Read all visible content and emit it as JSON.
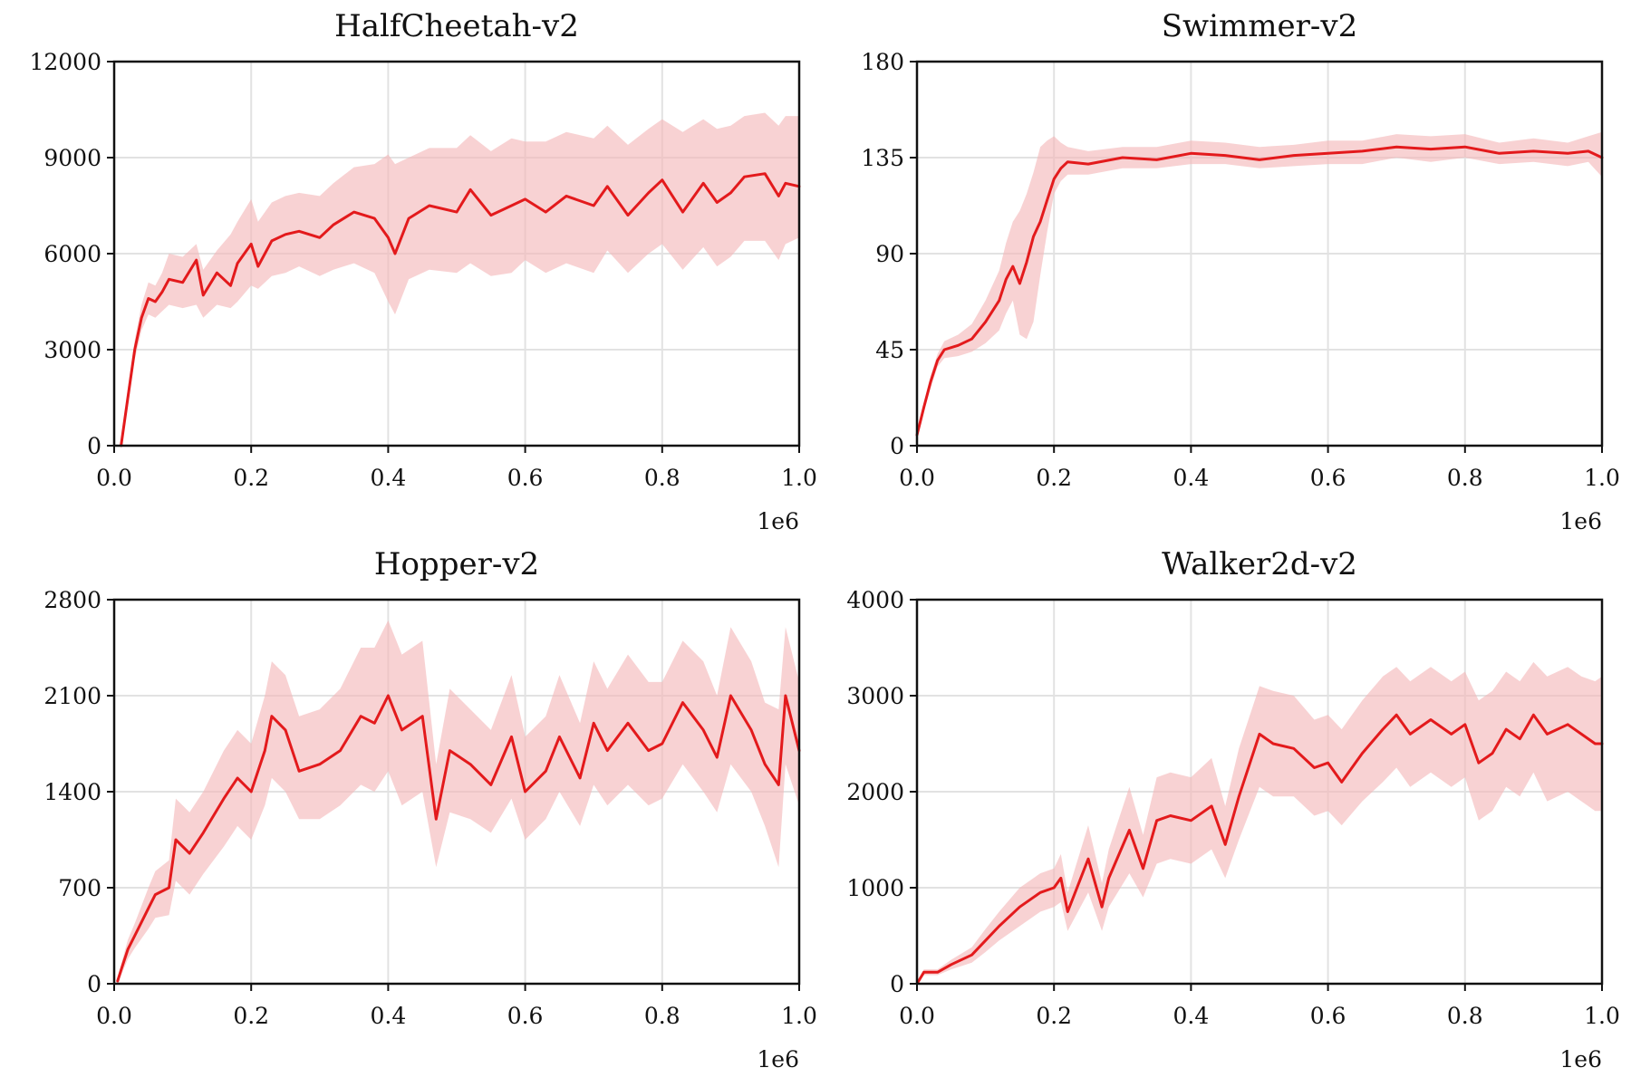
{
  "colors": {
    "line": "#e31a1c",
    "band": "#f4b6b8",
    "grid": "#e2e2e2",
    "axis": "#111111"
  },
  "chart_data": [
    {
      "type": "line",
      "title": "HalfCheetah-v2",
      "x_offset_label": "1e6",
      "xlim": [
        0,
        1.0
      ],
      "ylim": [
        0,
        12000
      ],
      "xticks": [
        0.0,
        0.2,
        0.4,
        0.6,
        0.8,
        1.0
      ],
      "xtick_labels": [
        "0.0",
        "0.2",
        "0.4",
        "0.6",
        "0.8",
        "1.0"
      ],
      "yticks": [
        0,
        3000,
        6000,
        9000,
        12000
      ],
      "ytick_labels": [
        "0",
        "3000",
        "6000",
        "9000",
        "12000"
      ],
      "grid": true,
      "series": [
        {
          "x": [
            0.01,
            0.02,
            0.03,
            0.04,
            0.05,
            0.06,
            0.07,
            0.08,
            0.1,
            0.12,
            0.13,
            0.15,
            0.17,
            0.18,
            0.2,
            0.21,
            0.23,
            0.25,
            0.27,
            0.3,
            0.32,
            0.35,
            0.38,
            0.4,
            0.41,
            0.43,
            0.46,
            0.5,
            0.52,
            0.55,
            0.58,
            0.6,
            0.63,
            0.66,
            0.7,
            0.72,
            0.75,
            0.78,
            0.8,
            0.83,
            0.86,
            0.88,
            0.9,
            0.92,
            0.95,
            0.97,
            0.98,
            1.0
          ],
          "y": [
            0,
            1500,
            3000,
            4000,
            4600,
            4500,
            4800,
            5200,
            5100,
            5800,
            4700,
            5400,
            5000,
            5700,
            6300,
            5600,
            6400,
            6600,
            6700,
            6500,
            6900,
            7300,
            7100,
            6500,
            6000,
            7100,
            7500,
            7300,
            8000,
            7200,
            7500,
            7700,
            7300,
            7800,
            7500,
            8100,
            7200,
            7900,
            8300,
            7300,
            8200,
            7600,
            7900,
            8400,
            8500,
            7800,
            8200,
            8100
          ],
          "lower": [
            0,
            1200,
            2700,
            3600,
            4100,
            4000,
            4200,
            4400,
            4300,
            4400,
            4000,
            4400,
            4300,
            4500,
            5000,
            4900,
            5300,
            5400,
            5600,
            5300,
            5500,
            5700,
            5400,
            4500,
            4100,
            5200,
            5500,
            5400,
            5700,
            5300,
            5400,
            5800,
            5400,
            5700,
            5400,
            6100,
            5400,
            6000,
            6300,
            5500,
            6200,
            5600,
            5900,
            6400,
            6400,
            5800,
            6300,
            6500
          ],
          "upper": [
            0,
            1800,
            3300,
            4400,
            5100,
            5000,
            5400,
            6000,
            5900,
            6300,
            5500,
            6100,
            6600,
            7000,
            7700,
            7000,
            7600,
            7800,
            7900,
            7800,
            8200,
            8700,
            8800,
            9100,
            8800,
            9000,
            9300,
            9300,
            9700,
            9200,
            9600,
            9500,
            9500,
            9800,
            9600,
            10000,
            9400,
            9900,
            10200,
            9800,
            10200,
            9900,
            10000,
            10300,
            10400,
            10000,
            10300,
            10300
          ]
        }
      ]
    },
    {
      "type": "line",
      "title": "Swimmer-v2",
      "x_offset_label": "1e6",
      "xlim": [
        0,
        1.0
      ],
      "ylim": [
        0,
        180
      ],
      "xticks": [
        0.0,
        0.2,
        0.4,
        0.6,
        0.8,
        1.0
      ],
      "xtick_labels": [
        "0.0",
        "0.2",
        "0.4",
        "0.6",
        "0.8",
        "1.0"
      ],
      "yticks": [
        0,
        45,
        90,
        135,
        180
      ],
      "ytick_labels": [
        "0",
        "45",
        "90",
        "135",
        "180"
      ],
      "grid": true,
      "series": [
        {
          "x": [
            0.0,
            0.01,
            0.02,
            0.03,
            0.04,
            0.06,
            0.08,
            0.1,
            0.12,
            0.13,
            0.14,
            0.15,
            0.16,
            0.17,
            0.18,
            0.19,
            0.2,
            0.21,
            0.22,
            0.25,
            0.3,
            0.35,
            0.4,
            0.45,
            0.5,
            0.55,
            0.6,
            0.65,
            0.7,
            0.75,
            0.8,
            0.85,
            0.9,
            0.95,
            0.98,
            1.0
          ],
          "y": [
            5,
            18,
            30,
            40,
            45,
            47,
            50,
            58,
            68,
            78,
            84,
            76,
            86,
            98,
            105,
            115,
            125,
            130,
            133,
            132,
            135,
            134,
            137,
            136,
            134,
            136,
            137,
            138,
            140,
            139,
            140,
            137,
            138,
            137,
            138,
            135
          ],
          "lower": [
            5,
            16,
            27,
            37,
            41,
            42,
            44,
            48,
            54,
            62,
            68,
            52,
            50,
            58,
            80,
            100,
            118,
            124,
            127,
            127,
            130,
            130,
            132,
            132,
            130,
            131,
            132,
            132,
            135,
            133,
            135,
            132,
            133,
            131,
            133,
            126
          ],
          "upper": [
            5,
            20,
            33,
            43,
            49,
            52,
            57,
            68,
            82,
            95,
            105,
            110,
            118,
            128,
            140,
            143,
            145,
            142,
            140,
            138,
            140,
            140,
            143,
            142,
            140,
            141,
            143,
            143,
            146,
            145,
            146,
            142,
            144,
            142,
            145,
            147
          ]
        }
      ]
    },
    {
      "type": "line",
      "title": "Hopper-v2",
      "x_offset_label": "1e6",
      "xlim": [
        0,
        1.0
      ],
      "ylim": [
        0,
        2800
      ],
      "xticks": [
        0.0,
        0.2,
        0.4,
        0.6,
        0.8,
        1.0
      ],
      "xtick_labels": [
        "0.0",
        "0.2",
        "0.4",
        "0.6",
        "0.8",
        "1.0"
      ],
      "yticks": [
        0,
        700,
        1400,
        2100,
        2800
      ],
      "ytick_labels": [
        "0",
        "700",
        "1400",
        "2100",
        "2800"
      ],
      "grid": true,
      "series": [
        {
          "x": [
            0.005,
            0.01,
            0.02,
            0.03,
            0.05,
            0.06,
            0.08,
            0.09,
            0.11,
            0.13,
            0.16,
            0.18,
            0.2,
            0.22,
            0.23,
            0.25,
            0.27,
            0.3,
            0.33,
            0.36,
            0.38,
            0.4,
            0.42,
            0.45,
            0.47,
            0.49,
            0.52,
            0.55,
            0.58,
            0.6,
            0.63,
            0.65,
            0.68,
            0.7,
            0.72,
            0.75,
            0.78,
            0.8,
            0.83,
            0.86,
            0.88,
            0.9,
            0.93,
            0.95,
            0.97,
            0.98,
            1.0
          ],
          "y": [
            20,
            100,
            250,
            350,
            550,
            650,
            700,
            1050,
            950,
            1100,
            1350,
            1500,
            1400,
            1700,
            1950,
            1850,
            1550,
            1600,
            1700,
            1950,
            1900,
            2100,
            1850,
            1950,
            1200,
            1700,
            1600,
            1450,
            1800,
            1400,
            1550,
            1800,
            1500,
            1900,
            1700,
            1900,
            1700,
            1750,
            2050,
            1850,
            1650,
            2100,
            1850,
            1600,
            1450,
            2100,
            1700
          ],
          "lower": [
            10,
            60,
            180,
            260,
            400,
            480,
            500,
            750,
            650,
            800,
            1000,
            1150,
            1050,
            1300,
            1500,
            1400,
            1200,
            1200,
            1300,
            1450,
            1400,
            1550,
            1300,
            1400,
            850,
            1250,
            1200,
            1100,
            1350,
            1050,
            1200,
            1400,
            1150,
            1450,
            1300,
            1450,
            1300,
            1350,
            1600,
            1400,
            1250,
            1600,
            1400,
            1150,
            850,
            1600,
            1300
          ],
          "upper": [
            30,
            140,
            320,
            440,
            700,
            820,
            900,
            1350,
            1250,
            1400,
            1700,
            1850,
            1750,
            2100,
            2350,
            2250,
            1950,
            2000,
            2150,
            2450,
            2450,
            2650,
            2400,
            2500,
            1600,
            2150,
            2000,
            1850,
            2250,
            1800,
            1950,
            2250,
            1900,
            2350,
            2150,
            2400,
            2200,
            2200,
            2500,
            2350,
            2100,
            2600,
            2350,
            2050,
            2000,
            2600,
            2200
          ]
        }
      ]
    },
    {
      "type": "line",
      "title": "Walker2d-v2",
      "x_offset_label": "1e6",
      "xlim": [
        0,
        1.0
      ],
      "ylim": [
        0,
        4000
      ],
      "xticks": [
        0.0,
        0.2,
        0.4,
        0.6,
        0.8,
        1.0
      ],
      "xtick_labels": [
        "0.0",
        "0.2",
        "0.4",
        "0.6",
        "0.8",
        "1.0"
      ],
      "yticks": [
        0,
        1000,
        2000,
        3000,
        4000
      ],
      "ytick_labels": [
        "0",
        "1000",
        "2000",
        "3000",
        "4000"
      ],
      "grid": true,
      "series": [
        {
          "x": [
            0.0,
            0.01,
            0.03,
            0.05,
            0.08,
            0.1,
            0.12,
            0.15,
            0.18,
            0.2,
            0.21,
            0.22,
            0.25,
            0.27,
            0.28,
            0.31,
            0.33,
            0.35,
            0.37,
            0.4,
            0.43,
            0.45,
            0.47,
            0.5,
            0.52,
            0.55,
            0.58,
            0.6,
            0.62,
            0.65,
            0.68,
            0.7,
            0.72,
            0.75,
            0.78,
            0.8,
            0.82,
            0.84,
            0.86,
            0.88,
            0.9,
            0.92,
            0.95,
            0.97,
            0.99,
            1.0
          ],
          "y": [
            0,
            120,
            120,
            200,
            300,
            450,
            600,
            800,
            950,
            1000,
            1100,
            750,
            1300,
            800,
            1100,
            1600,
            1200,
            1700,
            1750,
            1700,
            1850,
            1450,
            1950,
            2600,
            2500,
            2450,
            2250,
            2300,
            2100,
            2400,
            2650,
            2800,
            2600,
            2750,
            2600,
            2700,
            2300,
            2400,
            2650,
            2550,
            2800,
            2600,
            2700,
            2600,
            2500,
            2500
          ],
          "lower": [
            0,
            90,
            90,
            150,
            220,
            330,
            450,
            600,
            750,
            800,
            850,
            550,
            950,
            550,
            800,
            1150,
            900,
            1250,
            1300,
            1250,
            1400,
            1100,
            1500,
            2050,
            1950,
            1950,
            1750,
            1800,
            1650,
            1900,
            2100,
            2250,
            2050,
            2200,
            2050,
            2150,
            1700,
            1800,
            2050,
            1950,
            2200,
            1900,
            2000,
            1900,
            1800,
            1800
          ],
          "upper": [
            0,
            150,
            150,
            250,
            380,
            570,
            750,
            1000,
            1150,
            1200,
            1350,
            950,
            1650,
            1050,
            1400,
            2050,
            1550,
            2150,
            2200,
            2150,
            2350,
            1850,
            2450,
            3100,
            3050,
            3000,
            2750,
            2800,
            2650,
            2950,
            3200,
            3300,
            3150,
            3300,
            3150,
            3250,
            2950,
            3050,
            3250,
            3150,
            3350,
            3200,
            3300,
            3200,
            3150,
            3200
          ]
        }
      ]
    }
  ]
}
